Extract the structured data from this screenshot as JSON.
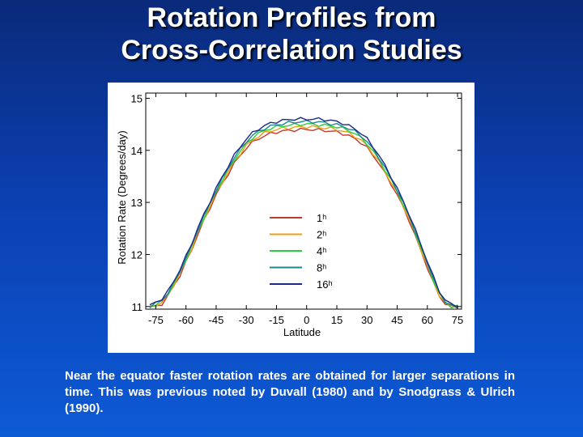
{
  "slide": {
    "title_line1": "Rotation Profiles from",
    "title_line2": "Cross-Correlation Studies",
    "caption": "Near the equator faster rotation rates are obtained for larger separations in time. This was previous noted by Duvall (1980) and by Snodgrass & Ulrich (1990)."
  },
  "colors": {
    "background_top": "#0a2a7a",
    "background_bottom": "#0d5ad6",
    "title_text": "#ffffff",
    "figure_background": "#ffffff"
  },
  "chart_data": {
    "type": "line",
    "title": "",
    "xlabel": "Latitude",
    "ylabel": "Rotation Rate (Degrees/day)",
    "xlim": [
      -80,
      77
    ],
    "ylim": [
      10.95,
      15.1
    ],
    "xticks": [
      -75,
      -60,
      -45,
      -30,
      -15,
      0,
      15,
      30,
      45,
      60,
      75
    ],
    "xtick_labels": [
      "-75",
      "-60",
      "-45",
      "-30",
      "-15",
      "0",
      "15",
      "30",
      "45",
      "60",
      "75"
    ],
    "yticks": [
      11,
      12,
      13,
      14,
      15
    ],
    "ytick_labels": [
      "11",
      "12",
      "13",
      "14",
      "15"
    ],
    "grid": false,
    "legend_position": "center",
    "x": [
      -78,
      -75,
      -72,
      -69,
      -66,
      -63,
      -60,
      -57,
      -54,
      -51,
      -48,
      -45,
      -42,
      -39,
      -36,
      -33,
      -30,
      -27,
      -24,
      -21,
      -18,
      -15,
      -12,
      -9,
      -6,
      -3,
      0,
      3,
      6,
      9,
      12,
      15,
      18,
      21,
      24,
      27,
      30,
      33,
      36,
      39,
      42,
      45,
      48,
      51,
      54,
      57,
      60,
      63,
      66,
      69,
      72,
      75
    ],
    "series": [
      {
        "name": "1ʰ",
        "color": "#c0392b",
        "values": [
          11.0,
          11.0,
          11.05,
          11.2,
          11.4,
          11.6,
          11.85,
          12.1,
          12.4,
          12.65,
          12.9,
          13.15,
          13.35,
          13.55,
          13.75,
          13.9,
          14.05,
          14.15,
          14.22,
          14.28,
          14.32,
          14.35,
          14.37,
          14.38,
          14.39,
          14.4,
          14.4,
          14.4,
          14.39,
          14.38,
          14.37,
          14.35,
          14.32,
          14.28,
          14.22,
          14.15,
          14.05,
          13.9,
          13.75,
          13.55,
          13.35,
          13.15,
          12.9,
          12.65,
          12.35,
          12.05,
          11.75,
          11.45,
          11.2,
          11.05,
          11.0,
          11.0
        ]
      },
      {
        "name": "2ʰ",
        "color": "#f39c12",
        "values": [
          11.0,
          11.02,
          11.08,
          11.22,
          11.42,
          11.63,
          11.88,
          12.13,
          12.43,
          12.68,
          12.93,
          13.18,
          13.38,
          13.58,
          13.78,
          13.94,
          14.09,
          14.19,
          14.27,
          14.33,
          14.37,
          14.4,
          14.42,
          14.43,
          14.44,
          14.45,
          14.45,
          14.45,
          14.44,
          14.43,
          14.42,
          14.4,
          14.37,
          14.33,
          14.27,
          14.19,
          14.09,
          13.94,
          13.78,
          13.58,
          13.38,
          13.18,
          12.93,
          12.68,
          12.38,
          12.08,
          11.78,
          11.48,
          11.22,
          11.06,
          11.0,
          11.0
        ]
      },
      {
        "name": "4ʰ",
        "color": "#2ecc40",
        "values": [
          11.0,
          11.04,
          11.1,
          11.24,
          11.44,
          11.66,
          11.91,
          12.16,
          12.46,
          12.71,
          12.96,
          13.21,
          13.42,
          13.62,
          13.82,
          13.98,
          14.13,
          14.24,
          14.32,
          14.38,
          14.42,
          14.45,
          14.47,
          14.48,
          14.49,
          14.5,
          14.5,
          14.5,
          14.49,
          14.48,
          14.47,
          14.45,
          14.42,
          14.38,
          14.32,
          14.24,
          14.13,
          13.98,
          13.82,
          13.62,
          13.42,
          13.21,
          12.96,
          12.71,
          12.41,
          12.11,
          11.81,
          11.51,
          11.24,
          11.08,
          11.0,
          11.0
        ]
      },
      {
        "name": "8ʰ",
        "color": "#1a8a8a",
        "values": [
          11.0,
          11.06,
          11.12,
          11.26,
          11.46,
          11.68,
          11.93,
          12.19,
          12.49,
          12.74,
          12.99,
          13.24,
          13.45,
          13.66,
          13.86,
          14.02,
          14.17,
          14.28,
          14.36,
          14.42,
          14.46,
          14.49,
          14.51,
          14.53,
          14.54,
          14.55,
          14.55,
          14.55,
          14.54,
          14.53,
          14.51,
          14.49,
          14.46,
          14.42,
          14.36,
          14.28,
          14.17,
          14.02,
          13.86,
          13.66,
          13.45,
          13.24,
          12.99,
          12.74,
          12.44,
          12.14,
          11.84,
          11.54,
          11.26,
          11.1,
          11.02,
          11.0
        ]
      },
      {
        "name": "16ʰ",
        "color": "#1b2a8c",
        "values": [
          11.02,
          11.08,
          11.15,
          11.29,
          11.49,
          11.71,
          11.96,
          12.22,
          12.52,
          12.77,
          13.02,
          13.27,
          13.49,
          13.7,
          13.9,
          14.07,
          14.22,
          14.33,
          14.41,
          14.47,
          14.52,
          14.55,
          14.57,
          14.59,
          14.6,
          14.6,
          14.6,
          14.6,
          14.6,
          14.59,
          14.57,
          14.55,
          14.52,
          14.47,
          14.41,
          14.33,
          14.22,
          14.07,
          13.9,
          13.7,
          13.49,
          13.27,
          13.02,
          12.77,
          12.47,
          12.17,
          11.87,
          11.57,
          11.29,
          11.12,
          11.04,
          11.0
        ]
      }
    ]
  }
}
